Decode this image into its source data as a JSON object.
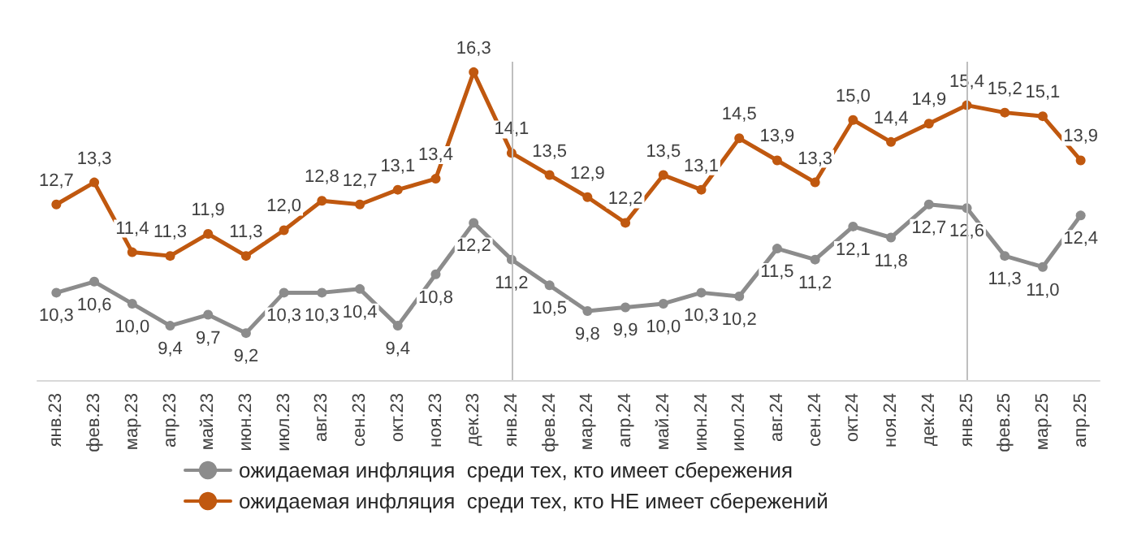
{
  "chart_data": {
    "type": "line",
    "categories": [
      "янв.23",
      "фев.23",
      "мар.23",
      "апр.23",
      "май.23",
      "июн.23",
      "июл.23",
      "авг.23",
      "сен.23",
      "окт.23",
      "ноя.23",
      "дек.23",
      "янв.24",
      "фев.24",
      "мар.24",
      "апр.24",
      "май.24",
      "июн.24",
      "июл.24",
      "авг.24",
      "сен.24",
      "окт.24",
      "ноя.24",
      "дек.24",
      "янв.25",
      "фев.25",
      "мар.25",
      "апр.25"
    ],
    "series": [
      {
        "name": "ожидаемая инфляция  среди тех, кто имеет сбережения",
        "color": "#8c8c8c",
        "values": [
          10.3,
          10.6,
          10.0,
          9.4,
          9.7,
          9.2,
          10.3,
          10.3,
          10.4,
          9.4,
          10.8,
          12.2,
          11.2,
          10.5,
          9.8,
          9.9,
          10.0,
          10.3,
          10.2,
          11.5,
          11.2,
          12.1,
          11.8,
          12.7,
          12.6,
          11.3,
          11.0,
          12.4
        ],
        "value_labels": [
          "10,3",
          "10,6",
          "10,0",
          "9,4",
          "9,7",
          "9,2",
          "10,3",
          "10,3",
          "10,4",
          "9,4",
          "10,8",
          "12,2",
          "11,2",
          "10,5",
          "9,8",
          "9,9",
          "10,0",
          "10,3",
          "10,2",
          "11,5",
          "11,2",
          "12,1",
          "11,8",
          "12,7",
          "12,6",
          "11,3",
          "11,0",
          "12,4"
        ]
      },
      {
        "name": "ожидаемая инфляция  среди тех, кто НЕ имеет сбережений",
        "color": "#c0580f",
        "values": [
          12.7,
          13.3,
          11.4,
          11.3,
          11.9,
          11.3,
          12.0,
          12.8,
          12.7,
          13.1,
          13.4,
          16.3,
          14.1,
          13.5,
          12.9,
          12.2,
          13.5,
          13.1,
          14.5,
          13.9,
          13.3,
          15.0,
          14.4,
          14.9,
          15.4,
          15.2,
          15.1,
          13.9
        ],
        "value_labels": [
          "12,7",
          "13,3",
          "11,4",
          "11,3",
          "11,9",
          "11,3",
          "12,0",
          "12,8",
          "12,7",
          "13,1",
          "13,4",
          "16,3",
          "14,1",
          "13,5",
          "12,9",
          "12,2",
          "13,5",
          "13,1",
          "14,5",
          "13,9",
          "13,3",
          "15,0",
          "14,4",
          "14,9",
          "15,4",
          "15,2",
          "15,1",
          "13,9"
        ]
      }
    ],
    "ref_lines": [
      {
        "axis": "x",
        "value": "янв.24",
        "color": "#bfbfbf"
      },
      {
        "axis": "x",
        "value": "янв.25",
        "color": "#bfbfbf"
      }
    ],
    "legend": "bottom",
    "marker": "circle",
    "line_style": "solid",
    "grid": false
  }
}
